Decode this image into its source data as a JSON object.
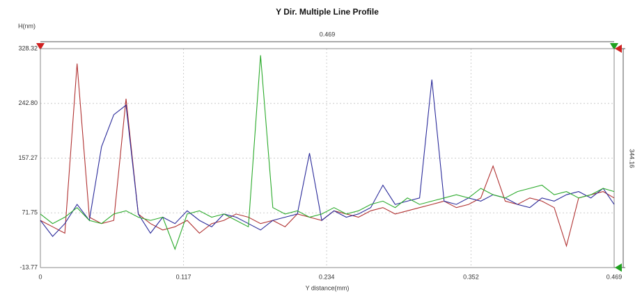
{
  "chart_data": {
    "type": "line",
    "title": "Y Dir. Multiple Line Profile",
    "y_label": "H(nm)",
    "x_label": "Y distance(mm)",
    "annotations": [
      "0.469",
      "344.16"
    ],
    "x": [
      0,
      0.01,
      0.02,
      0.03,
      0.04,
      0.05,
      0.06,
      0.07,
      0.08,
      0.09,
      0.1,
      0.11,
      0.12,
      0.13,
      0.14,
      0.15,
      0.16,
      0.17,
      0.18,
      0.19,
      0.2,
      0.21,
      0.22,
      0.23,
      0.24,
      0.25,
      0.26,
      0.27,
      0.28,
      0.29,
      0.3,
      0.31,
      0.32,
      0.33,
      0.34,
      0.35,
      0.36,
      0.37,
      0.38,
      0.39,
      0.4,
      0.41,
      0.42,
      0.43,
      0.44,
      0.45,
      0.46,
      0.469
    ],
    "series": [
      {
        "color": "#b03030",
        "values": [
          60,
          50,
          40,
          305,
          65,
          55,
          60,
          250,
          70,
          55,
          45,
          50,
          60,
          40,
          55,
          60,
          70,
          65,
          55,
          60,
          50,
          70,
          65,
          60,
          75,
          70,
          65,
          75,
          80,
          70,
          75,
          80,
          85,
          90,
          80,
          85,
          95,
          145,
          90,
          85,
          95,
          90,
          80,
          20,
          95,
          100,
          105,
          95
        ]
      },
      {
        "color": "#2a2a9a",
        "values": [
          60,
          35,
          55,
          85,
          60,
          175,
          225,
          240,
          70,
          40,
          65,
          55,
          75,
          60,
          50,
          70,
          65,
          55,
          45,
          60,
          65,
          70,
          165,
          60,
          75,
          65,
          70,
          80,
          115,
          85,
          90,
          95,
          280,
          90,
          85,
          95,
          90,
          100,
          95,
          85,
          80,
          95,
          90,
          100,
          105,
          95,
          110,
          85
        ]
      },
      {
        "color": "#2aaa2a",
        "values": [
          70,
          55,
          65,
          80,
          60,
          55,
          70,
          75,
          65,
          60,
          65,
          15,
          70,
          75,
          65,
          70,
          60,
          50,
          318,
          80,
          70,
          75,
          65,
          70,
          80,
          70,
          75,
          85,
          90,
          80,
          95,
          85,
          90,
          95,
          100,
          95,
          110,
          100,
          95,
          105,
          110,
          115,
          100,
          105,
          95,
          100,
          110,
          105
        ]
      }
    ],
    "xlim": [
      0,
      0.469
    ],
    "xticks": [
      0,
      0.117,
      0.234,
      0.352,
      0.469
    ],
    "ylim": [
      -13.77,
      328.32
    ],
    "yticks": [
      -13.77,
      71.75,
      157.27,
      {
        "value": 242.8,
        "label": "242.80"
      },
      328.32
    ],
    "grid": true
  }
}
